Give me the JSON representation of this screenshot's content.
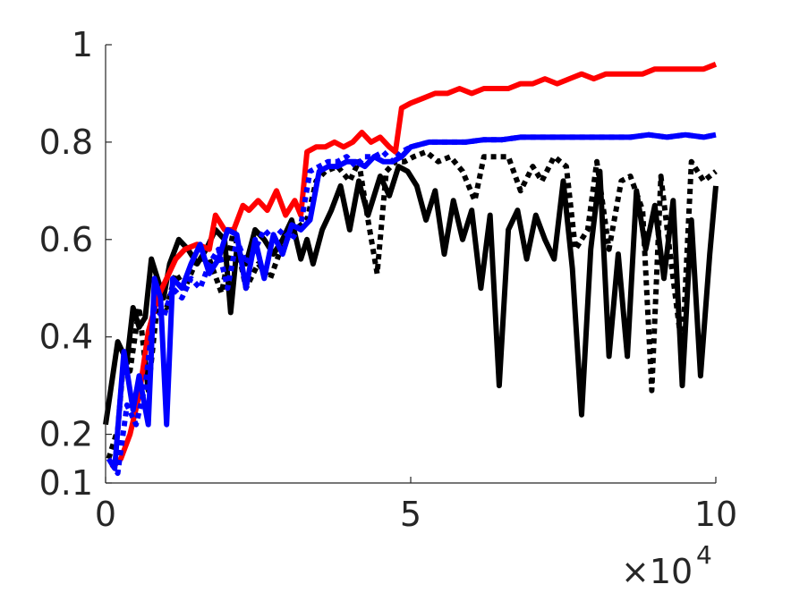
{
  "chart_data": {
    "type": "line",
    "title": "",
    "xlabel": "",
    "ylabel": "",
    "x_exponent_label": {
      "base": "×10",
      "exp": "4"
    },
    "xlim": [
      0,
      10
    ],
    "ylim": [
      0.1,
      1.0
    ],
    "x_ticks": [
      {
        "value": 0,
        "label": "0"
      },
      {
        "value": 5,
        "label": "5"
      },
      {
        "value": 10,
        "label": "10"
      }
    ],
    "y_ticks": [
      {
        "value": 0.1,
        "label": "0.1"
      },
      {
        "value": 0.2,
        "label": "0.2"
      },
      {
        "value": 0.4,
        "label": "0.4"
      },
      {
        "value": 0.6,
        "label": "0.6"
      },
      {
        "value": 0.8,
        "label": "0.8"
      },
      {
        "value": 1.0,
        "label": "1"
      }
    ],
    "grid": false,
    "legend": "none",
    "colors": {
      "axis": "#262626",
      "background": "#ffffff"
    },
    "series": [
      {
        "color": "#000000",
        "style": "solid",
        "x": [
          0.0,
          0.2,
          0.35,
          0.45,
          0.55,
          0.65,
          0.75,
          0.85,
          0.95,
          1.05,
          1.2,
          1.35,
          1.5,
          1.65,
          1.8,
          1.95,
          2.05,
          2.15,
          2.3,
          2.45,
          2.6,
          2.75,
          2.9,
          3.05,
          3.2,
          3.3,
          3.4,
          3.55,
          3.7,
          3.85,
          4.0,
          4.15,
          4.3,
          4.5,
          4.65,
          4.8,
          4.95,
          5.1,
          5.25,
          5.4,
          5.55,
          5.7,
          5.85,
          6.0,
          6.15,
          6.3,
          6.45,
          6.6,
          6.75,
          6.9,
          7.05,
          7.2,
          7.35,
          7.5,
          7.65,
          7.8,
          7.95,
          8.1,
          8.25,
          8.4,
          8.55,
          8.7,
          8.85,
          9.0,
          9.15,
          9.3,
          9.45,
          9.6,
          9.75,
          9.9,
          10.0
        ],
        "y": [
          0.22,
          0.39,
          0.35,
          0.46,
          0.42,
          0.44,
          0.56,
          0.52,
          0.48,
          0.55,
          0.6,
          0.58,
          0.55,
          0.58,
          0.62,
          0.6,
          0.45,
          0.58,
          0.55,
          0.62,
          0.6,
          0.57,
          0.6,
          0.64,
          0.56,
          0.6,
          0.55,
          0.62,
          0.66,
          0.71,
          0.62,
          0.72,
          0.65,
          0.73,
          0.69,
          0.75,
          0.74,
          0.71,
          0.64,
          0.7,
          0.57,
          0.68,
          0.6,
          0.66,
          0.5,
          0.65,
          0.3,
          0.62,
          0.66,
          0.56,
          0.65,
          0.6,
          0.56,
          0.72,
          0.54,
          0.24,
          0.58,
          0.74,
          0.36,
          0.57,
          0.36,
          0.7,
          0.58,
          0.67,
          0.52,
          0.68,
          0.3,
          0.64,
          0.32,
          0.57,
          0.71
        ]
      },
      {
        "color": "#000000",
        "style": "dotted",
        "x": [
          0.05,
          0.2,
          0.3,
          0.4,
          0.55,
          0.7,
          0.85,
          1.0,
          1.15,
          1.3,
          1.5,
          1.7,
          1.9,
          2.1,
          2.3,
          2.5,
          2.7,
          2.9,
          3.1,
          3.3,
          3.45,
          3.6,
          3.8,
          4.0,
          4.15,
          4.3,
          4.45,
          4.6,
          4.75,
          4.9,
          5.05,
          5.25,
          5.45,
          5.65,
          5.85,
          6.05,
          6.2,
          6.4,
          6.6,
          6.8,
          7.0,
          7.15,
          7.35,
          7.55,
          7.7,
          7.9,
          8.05,
          8.25,
          8.45,
          8.6,
          8.8,
          8.95,
          9.1,
          9.25,
          9.45,
          9.6,
          9.8,
          10.0
        ],
        "y": [
          0.15,
          0.21,
          0.36,
          0.33,
          0.46,
          0.29,
          0.47,
          0.46,
          0.53,
          0.5,
          0.56,
          0.56,
          0.49,
          0.62,
          0.5,
          0.55,
          0.52,
          0.59,
          0.62,
          0.64,
          0.72,
          0.74,
          0.75,
          0.72,
          0.76,
          0.64,
          0.53,
          0.74,
          0.76,
          0.76,
          0.77,
          0.78,
          0.76,
          0.77,
          0.74,
          0.68,
          0.77,
          0.77,
          0.77,
          0.7,
          0.75,
          0.72,
          0.77,
          0.75,
          0.58,
          0.62,
          0.76,
          0.58,
          0.72,
          0.73,
          0.66,
          0.29,
          0.73,
          0.57,
          0.37,
          0.76,
          0.72,
          0.74
        ]
      },
      {
        "color": "#ff0000",
        "style": "solid",
        "x": [
          0.1,
          0.25,
          0.4,
          0.55,
          0.7,
          0.85,
          1.0,
          1.15,
          1.3,
          1.5,
          1.7,
          1.8,
          1.95,
          2.1,
          2.25,
          2.35,
          2.5,
          2.65,
          2.8,
          2.95,
          3.1,
          3.2,
          3.3,
          3.45,
          3.6,
          3.75,
          3.9,
          4.05,
          4.2,
          4.35,
          4.5,
          4.65,
          4.75,
          4.85,
          5.0,
          5.2,
          5.4,
          5.6,
          5.8,
          6.0,
          6.2,
          6.4,
          6.6,
          6.8,
          7.0,
          7.2,
          7.4,
          7.6,
          7.8,
          8.0,
          8.2,
          8.4,
          8.6,
          8.8,
          9.0,
          9.2,
          9.4,
          9.6,
          9.8,
          10.0
        ],
        "y": [
          0.13,
          0.15,
          0.2,
          0.28,
          0.41,
          0.48,
          0.52,
          0.56,
          0.58,
          0.59,
          0.58,
          0.65,
          0.62,
          0.62,
          0.67,
          0.66,
          0.68,
          0.66,
          0.7,
          0.65,
          0.68,
          0.65,
          0.78,
          0.79,
          0.79,
          0.8,
          0.79,
          0.8,
          0.82,
          0.8,
          0.81,
          0.79,
          0.78,
          0.87,
          0.88,
          0.89,
          0.9,
          0.9,
          0.91,
          0.9,
          0.91,
          0.91,
          0.91,
          0.92,
          0.92,
          0.93,
          0.92,
          0.93,
          0.94,
          0.93,
          0.94,
          0.94,
          0.94,
          0.94,
          0.95,
          0.95,
          0.95,
          0.95,
          0.95,
          0.96
        ]
      },
      {
        "color": "#0000ff",
        "style": "dotted",
        "x": [
          0.1,
          0.2,
          0.35,
          0.5,
          0.65,
          0.8,
          0.95,
          1.1,
          1.25,
          1.4,
          1.55,
          1.7,
          1.85,
          2.0,
          2.15,
          2.3,
          2.45,
          2.6,
          2.75,
          2.9,
          3.05,
          3.2,
          3.35,
          3.5,
          3.65,
          3.8,
          3.95,
          4.1,
          4.25,
          4.4,
          4.55,
          4.7,
          4.85,
          5.0,
          5.3,
          5.6,
          5.9,
          6.2,
          6.5,
          6.8,
          7.1,
          7.4,
          7.7,
          8.0,
          8.3,
          8.6,
          8.9,
          9.2,
          9.5,
          9.8,
          10.0
        ],
        "y": [
          0.14,
          0.12,
          0.26,
          0.22,
          0.3,
          0.46,
          0.44,
          0.5,
          0.48,
          0.52,
          0.5,
          0.55,
          0.58,
          0.5,
          0.6,
          0.55,
          0.58,
          0.62,
          0.6,
          0.62,
          0.6,
          0.63,
          0.74,
          0.75,
          0.76,
          0.76,
          0.77,
          0.75,
          0.77,
          0.77,
          0.78,
          0.76,
          0.78,
          0.79,
          0.8,
          0.8,
          0.8,
          0.805,
          0.805,
          0.81,
          0.81,
          0.81,
          0.81,
          0.81,
          0.81,
          0.81,
          0.815,
          0.81,
          0.815,
          0.81,
          0.815
        ]
      },
      {
        "color": "#0000ff",
        "style": "solid",
        "x": [
          0.05,
          0.15,
          0.3,
          0.45,
          0.55,
          0.7,
          0.8,
          0.9,
          1.0,
          1.1,
          1.25,
          1.4,
          1.55,
          1.7,
          1.85,
          2.0,
          2.15,
          2.3,
          2.45,
          2.6,
          2.75,
          2.9,
          3.05,
          3.2,
          3.35,
          3.5,
          3.65,
          3.8,
          3.95,
          4.1,
          4.25,
          4.4,
          4.55,
          4.7,
          4.85,
          5.0,
          5.3,
          5.6,
          5.9,
          6.2,
          6.5,
          6.8,
          7.1,
          7.4,
          7.7,
          8.0,
          8.3,
          8.6,
          8.9,
          9.2,
          9.5,
          9.8,
          10.0
        ],
        "y": [
          0.15,
          0.13,
          0.37,
          0.25,
          0.32,
          0.22,
          0.52,
          0.48,
          0.22,
          0.52,
          0.5,
          0.55,
          0.59,
          0.53,
          0.56,
          0.62,
          0.61,
          0.5,
          0.6,
          0.52,
          0.61,
          0.57,
          0.63,
          0.62,
          0.64,
          0.74,
          0.75,
          0.75,
          0.76,
          0.76,
          0.75,
          0.77,
          0.76,
          0.76,
          0.77,
          0.79,
          0.8,
          0.8,
          0.8,
          0.805,
          0.805,
          0.81,
          0.81,
          0.81,
          0.81,
          0.81,
          0.81,
          0.81,
          0.815,
          0.81,
          0.815,
          0.81,
          0.815
        ]
      }
    ]
  }
}
